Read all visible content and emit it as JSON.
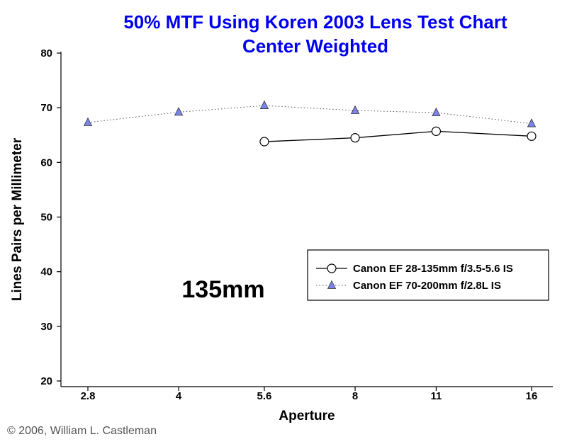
{
  "chart_data": {
    "type": "line",
    "title": "50% MTF Using Koren 2003 Lens Test Chart",
    "subtitle": "Center Weighted",
    "xlabel": "Aperture",
    "ylabel": "Lines Pairs per Millimeter",
    "categories": [
      "2.8",
      "4",
      "5.6",
      "8",
      "11",
      "16"
    ],
    "x_scale": "log",
    "ylim": [
      20,
      80
    ],
    "yticks": [
      20,
      30,
      40,
      50,
      60,
      70,
      80
    ],
    "grid": false,
    "legend_position": "right",
    "annotation": "135mm",
    "series": [
      {
        "name": "Canon EF 28-135mm f/3.5-5.6 IS",
        "x": [
          5.6,
          8,
          11,
          16
        ],
        "values": [
          63.8,
          64.5,
          65.7,
          64.8
        ],
        "color": "#000000",
        "marker": "circle",
        "line_style": "solid"
      },
      {
        "name": "Canon EF 70-200mm f/2.8L IS",
        "x": [
          2.8,
          4,
          5.6,
          8,
          11,
          16
        ],
        "values": [
          67.3,
          69.2,
          70.4,
          69.5,
          69.1,
          67.1
        ],
        "color": "#7b84e8",
        "marker": "triangle",
        "line_style": "dotted"
      }
    ]
  },
  "copyright": "© 2006, William L. Castleman"
}
